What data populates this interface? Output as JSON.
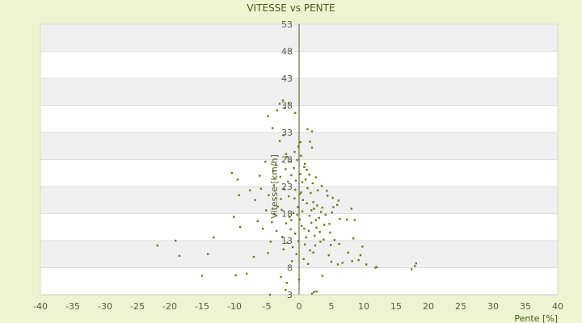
{
  "chart_data": {
    "type": "scatter",
    "title": "VITESSE vs PENTE",
    "xlabel": "Pente [%]",
    "ylabel": "Vitesse [km/h]",
    "xlim": [
      -40,
      40
    ],
    "ylim": [
      3,
      53
    ],
    "x_ticks": [
      -40,
      -35,
      -30,
      -25,
      -20,
      -15,
      -10,
      -5,
      0,
      5,
      10,
      15,
      20,
      25,
      30,
      35,
      40
    ],
    "y_ticks": [
      3,
      8,
      13,
      18,
      23,
      28,
      33,
      38,
      43,
      48,
      53
    ],
    "grid": "horizontal alternating bands",
    "legend": "none",
    "colors": {
      "background": "#eef3d2",
      "plot_band_light": "#ffffff",
      "plot_band_dark": "#f0f0f0",
      "marker": "#6b7a14",
      "axis_line": "#4b5a16"
    },
    "points": [
      [
        -2.5,
        38.9
      ],
      [
        -3,
        38.3
      ],
      [
        -1.6,
        38.4
      ],
      [
        -2.2,
        37.5
      ],
      [
        -4.8,
        36
      ],
      [
        -3.4,
        37.1
      ],
      [
        -4.1,
        33.8
      ],
      [
        -0.6,
        36.6
      ],
      [
        -3,
        31.4
      ],
      [
        -2.4,
        32.5
      ],
      [
        -2,
        29
      ],
      [
        -0.1,
        30.4
      ],
      [
        1.3,
        33.6
      ],
      [
        2,
        33.2
      ],
      [
        1.7,
        31.3
      ],
      [
        2,
        30.2
      ],
      [
        -10.4,
        25.5
      ],
      [
        -6.1,
        25
      ],
      [
        -5.2,
        27.6
      ],
      [
        -9.5,
        24.3
      ],
      [
        -7.6,
        22.3
      ],
      [
        -9.3,
        21.4
      ],
      [
        -10.1,
        17.4
      ],
      [
        -6.4,
        16.6
      ],
      [
        -9.1,
        15.5
      ],
      [
        -21.9,
        12.1
      ],
      [
        -19.1,
        13
      ],
      [
        -13.2,
        13.6
      ],
      [
        -18.5,
        10.2
      ],
      [
        -14.1,
        10.5
      ],
      [
        -7,
        10
      ],
      [
        -4.8,
        10.7
      ],
      [
        -15,
        6.5
      ],
      [
        -9.8,
        6.6
      ],
      [
        -8.1,
        6.9
      ],
      [
        -2.8,
        6.3
      ],
      [
        -1.9,
        5.2
      ],
      [
        -4.5,
        3
      ],
      [
        -2.1,
        3.9
      ],
      [
        0,
        5.8
      ],
      [
        2.3,
        3.5
      ],
      [
        2.7,
        3.6
      ],
      [
        2,
        3.2
      ],
      [
        3.6,
        6.5
      ],
      [
        4.6,
        10.3
      ],
      [
        5,
        9.1
      ],
      [
        6,
        8.6
      ],
      [
        6.7,
        8.9
      ],
      [
        7.6,
        10.8
      ],
      [
        8.2,
        9.2
      ],
      [
        9.2,
        9.4
      ],
      [
        9.5,
        10.3
      ],
      [
        9.8,
        11.9
      ],
      [
        10.4,
        8.6
      ],
      [
        11.8,
        8
      ],
      [
        12,
        8.1
      ],
      [
        17.4,
        7.7
      ],
      [
        17.9,
        8.3
      ],
      [
        18.1,
        8.8
      ],
      [
        8.4,
        13.4
      ],
      [
        8.6,
        16.8
      ],
      [
        8.1,
        18.9
      ],
      [
        7.4,
        16.9
      ],
      [
        6.3,
        17
      ],
      [
        5.1,
        18.2
      ],
      [
        5.9,
        19.6
      ],
      [
        6.1,
        20.4
      ],
      [
        4.4,
        21.3
      ],
      [
        5.2,
        20.9
      ],
      [
        4.8,
        14.5
      ],
      [
        5.5,
        13.1
      ],
      [
        6.2,
        12.4
      ],
      [
        -0.5,
        24.1
      ],
      [
        0.2,
        25.3
      ],
      [
        0.8,
        26.6
      ],
      [
        -0.3,
        27.9
      ],
      [
        1,
        24.3
      ],
      [
        0.5,
        23.8
      ],
      [
        -0.6,
        22.4
      ],
      [
        0.1,
        21.6
      ],
      [
        1.3,
        22.7
      ],
      [
        -1.2,
        25.1
      ],
      [
        -0.8,
        26.4
      ],
      [
        0.3,
        28.7
      ],
      [
        1.8,
        21.8
      ],
      [
        2.2,
        20.1
      ],
      [
        2.8,
        19.5
      ],
      [
        3.4,
        18.3
      ],
      [
        3.1,
        17.2
      ],
      [
        2.6,
        16.8
      ],
      [
        1.9,
        18.6
      ],
      [
        1.2,
        19.9
      ],
      [
        0.6,
        20.5
      ],
      [
        -0.2,
        19.2
      ],
      [
        -0.9,
        18.1
      ],
      [
        -1.5,
        17.4
      ],
      [
        -2,
        16.2
      ],
      [
        -1.3,
        15.1
      ],
      [
        -0.6,
        14.3
      ],
      [
        0.4,
        15.7
      ],
      [
        1.5,
        14.8
      ],
      [
        2.4,
        13.9
      ],
      [
        3.2,
        14.6
      ],
      [
        3.9,
        15.9
      ],
      [
        4.1,
        17.8
      ],
      [
        3.6,
        19.1
      ],
      [
        2.9,
        22.3
      ],
      [
        2.1,
        23.6
      ],
      [
        1.6,
        25.2
      ],
      [
        -1.7,
        23.9
      ],
      [
        -2.3,
        22.5
      ],
      [
        -2.8,
        20.7
      ],
      [
        -3.3,
        19.3
      ],
      [
        -3.8,
        17.9
      ],
      [
        -4.2,
        16.4
      ],
      [
        -3.5,
        14.8
      ],
      [
        -2.6,
        13.7
      ],
      [
        -1.8,
        12.6
      ],
      [
        -1,
        11.8
      ],
      [
        0.9,
        12.3
      ],
      [
        1.7,
        11.2
      ],
      [
        2.5,
        12.1
      ],
      [
        -0.4,
        10.5
      ],
      [
        0.7,
        9.6
      ],
      [
        1.4,
        8.7
      ],
      [
        -1.1,
        9.2
      ],
      [
        -2.4,
        11.4
      ],
      [
        -4.4,
        12.8
      ],
      [
        -5.6,
        15.2
      ],
      [
        -5.1,
        18.6
      ],
      [
        -4.7,
        21.4
      ],
      [
        -3.9,
        23.2
      ],
      [
        -2.9,
        24.8
      ],
      [
        -2.1,
        26.2
      ],
      [
        -1.4,
        27.6
      ],
      [
        -0.7,
        29.4
      ],
      [
        0.2,
        31.2
      ],
      [
        -5.9,
        22.6
      ],
      [
        -6.8,
        20.5
      ],
      [
        -4,
        25.9
      ],
      [
        -3.6,
        27.1
      ],
      [
        -1.9,
        28.5
      ],
      [
        0.9,
        27.2
      ],
      [
        1.2,
        26.1
      ],
      [
        2.6,
        24.7
      ],
      [
        3.5,
        23.1
      ],
      [
        4.3,
        22.2
      ],
      [
        5.3,
        19.2
      ],
      [
        4.7,
        16.1
      ],
      [
        3.3,
        12.8
      ],
      [
        2.2,
        10.8
      ],
      [
        1.1,
        13.6
      ],
      [
        0.1,
        16.9
      ],
      [
        -0.3,
        17.8
      ],
      [
        0.5,
        18.4
      ],
      [
        -0.7,
        20.8
      ],
      [
        0.3,
        21.9
      ],
      [
        -1.6,
        21.2
      ],
      [
        1.9,
        16.3
      ],
      [
        2.7,
        15.4
      ],
      [
        3.8,
        13.2
      ],
      [
        4.9,
        12.2
      ],
      [
        -1.2,
        16.8
      ],
      [
        -2.7,
        18.7
      ],
      [
        -0.1,
        12.9
      ],
      [
        0.8,
        15.2
      ],
      [
        1.6,
        17.6
      ],
      [
        2.3,
        18.9
      ]
    ]
  }
}
